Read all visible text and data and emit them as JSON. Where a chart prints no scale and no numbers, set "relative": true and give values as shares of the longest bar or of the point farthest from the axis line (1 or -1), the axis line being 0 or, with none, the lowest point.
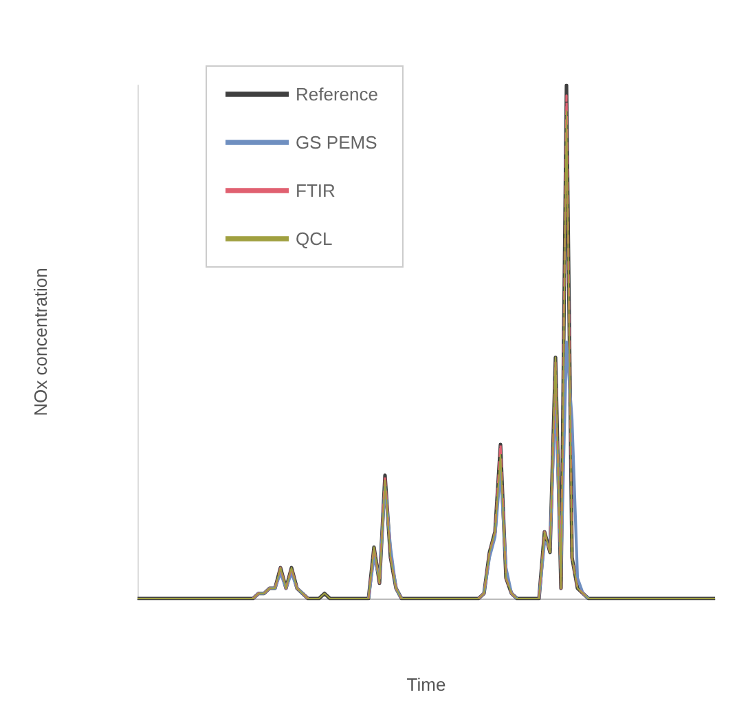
{
  "chart_data": {
    "type": "line",
    "relative": true,
    "xlabel": "Time",
    "ylabel": "NOx concentration",
    "legend": "top left",
    "grid": false,
    "categories": [
      null,
      null,
      null,
      null,
      null,
      null,
      null,
      null,
      null,
      null,
      null,
      null,
      null,
      null,
      null,
      null,
      null,
      null,
      null,
      null,
      null,
      null,
      null,
      null,
      null,
      null,
      null,
      null,
      null,
      null,
      null,
      null,
      null,
      null,
      null,
      null,
      null,
      null,
      null,
      null,
      null,
      null,
      null,
      null,
      null,
      null,
      null,
      null,
      null,
      null,
      null,
      null,
      null,
      null,
      null,
      null,
      null,
      null,
      null,
      null,
      null,
      null,
      null,
      null,
      null,
      null,
      null,
      null,
      null,
      null,
      null,
      null,
      null,
      null,
      null,
      null,
      null,
      null,
      null,
      null,
      null,
      null,
      null,
      null,
      null,
      null,
      null,
      null,
      null,
      null,
      null,
      null,
      null,
      null,
      null,
      null,
      null,
      null,
      null,
      null,
      null,
      null,
      null,
      null,
      null,
      null
    ],
    "series": [
      {
        "name": "Reference",
        "color": "#404040",
        "values": [
          0,
          0,
          0,
          0,
          0,
          0,
          0,
          0,
          0,
          0,
          0,
          0,
          0,
          0,
          0,
          0,
          0,
          0,
          0,
          0,
          0,
          0,
          0.01,
          0.01,
          0.02,
          0.02,
          0.06,
          0.02,
          0.06,
          0.02,
          0.01,
          0,
          0,
          0,
          0.01,
          0,
          0,
          0,
          0,
          0,
          0,
          0,
          0,
          0.1,
          0.03,
          0.24,
          0.08,
          0.02,
          0,
          0,
          0,
          0,
          0,
          0,
          0,
          0,
          0,
          0,
          0,
          0,
          0,
          0,
          0,
          0.01,
          0.09,
          0.13,
          0.3,
          0.04,
          0.01,
          0,
          0,
          0,
          0,
          0,
          0.13,
          0.09,
          0.47,
          0.02,
          1,
          0.08,
          0.02,
          0.01,
          0,
          0,
          0,
          0,
          0,
          0,
          0,
          0,
          0,
          0,
          0,
          0,
          0,
          0,
          0,
          0,
          0,
          0,
          0,
          0,
          0,
          0,
          0,
          0
        ]
      },
      {
        "name": "GS PEMS",
        "color": "#6f8fc0",
        "values": [
          null,
          null,
          null,
          null,
          null,
          null,
          null,
          null,
          null,
          null,
          null,
          null,
          null,
          null,
          null,
          null,
          null,
          null,
          null,
          null,
          null,
          0,
          0.01,
          0.01,
          0.02,
          0.02,
          0.05,
          0.02,
          0.05,
          0.02,
          0.01,
          0,
          null,
          null,
          null,
          null,
          null,
          null,
          null,
          null,
          null,
          null,
          0,
          0.08,
          0.04,
          0.22,
          0.1,
          0.02,
          0,
          null,
          null,
          null,
          null,
          null,
          null,
          null,
          null,
          null,
          null,
          null,
          null,
          null,
          0,
          0.01,
          0.08,
          0.12,
          0.25,
          0.06,
          0.01,
          0,
          null,
          null,
          null,
          0,
          0.11,
          0.1,
          0.4,
          0.05,
          0.5,
          0.35,
          0.04,
          0.01,
          0,
          null,
          null,
          null,
          null,
          null,
          null,
          null,
          null,
          null,
          null,
          null,
          null,
          null,
          null,
          null,
          null,
          null,
          null,
          null,
          null,
          null,
          null,
          null
        ]
      },
      {
        "name": "FTIR",
        "color": "#e06070",
        "line_style": "dashed",
        "values": [
          null,
          null,
          null,
          null,
          null,
          null,
          null,
          null,
          null,
          null,
          null,
          null,
          null,
          null,
          null,
          null,
          null,
          null,
          null,
          null,
          null,
          0,
          0.01,
          0.01,
          0.02,
          0.02,
          0.06,
          0.02,
          0.06,
          0.02,
          0.01,
          0,
          null,
          null,
          null,
          null,
          null,
          null,
          null,
          null,
          null,
          null,
          0,
          0.1,
          0.03,
          0.24,
          0.08,
          0.02,
          0,
          null,
          null,
          null,
          null,
          null,
          null,
          null,
          null,
          null,
          null,
          null,
          null,
          null,
          0,
          0.01,
          0.09,
          0.13,
          0.3,
          0.04,
          0.01,
          0,
          null,
          null,
          null,
          0,
          0.13,
          0.09,
          0.46,
          0.02,
          0.98,
          0.08,
          0.02,
          0.01,
          0,
          null,
          null,
          null,
          null,
          null,
          null,
          null,
          null,
          null,
          null,
          null,
          null,
          null,
          null,
          null,
          null,
          null,
          null,
          null,
          null,
          null,
          null,
          null
        ]
      },
      {
        "name": "QCL",
        "color": "#a0a040",
        "values": [
          0,
          0,
          0,
          0,
          0,
          0,
          0,
          0,
          0,
          0,
          0,
          0,
          0,
          0,
          0,
          0,
          0,
          0,
          0,
          0,
          0,
          0,
          0.01,
          0.01,
          0.02,
          0.02,
          0.06,
          0.02,
          0.06,
          0.02,
          0.01,
          0,
          0,
          0,
          0.01,
          0,
          0,
          0,
          0,
          0,
          0,
          0,
          0,
          0.1,
          0.03,
          0.23,
          0.08,
          0.02,
          0,
          0,
          0,
          0,
          0,
          0,
          0,
          0,
          0,
          0,
          0,
          0,
          0,
          0,
          0,
          0.01,
          0.09,
          0.13,
          0.28,
          0.04,
          0.01,
          0,
          0,
          0,
          0,
          0,
          0.13,
          0.09,
          0.47,
          0.02,
          0.95,
          0.08,
          0.02,
          0.01,
          0,
          0,
          0,
          0,
          0,
          0,
          0,
          0,
          0,
          0,
          0,
          0,
          0,
          0,
          0,
          0,
          0,
          0,
          0,
          0,
          0,
          0,
          0,
          0
        ]
      }
    ]
  }
}
